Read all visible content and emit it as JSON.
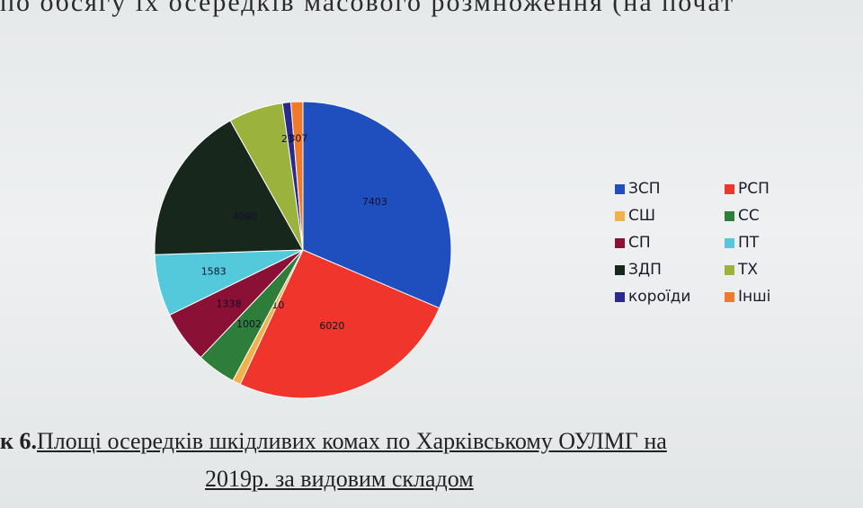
{
  "header": {
    "text": "по обсягу їх осередків масового розмноження (на почат"
  },
  "chart_data": {
    "type": "pie",
    "title": "",
    "categories": [
      "ЗСП",
      "РСП",
      "СШ",
      "СС",
      "СП",
      "ПТ",
      "ЗДП",
      "ТХ",
      "короїди",
      "Інші"
    ],
    "values": [
      7403,
      6020,
      210,
      1002,
      1338,
      1583,
      4090,
      1400,
      213,
      307
    ],
    "colors": [
      "#1f4fbf",
      "#f0362c",
      "#f2b24a",
      "#2e7d3a",
      "#8a1035",
      "#53c9db",
      "#17271b",
      "#9bb23c",
      "#2a2a8c",
      "#f07a2a"
    ],
    "data_labels": [
      "7403",
      "6020",
      "210",
      "1002",
      "1338",
      "1583",
      "4090",
      "",
      "213",
      "307"
    ],
    "legend_position": "right"
  },
  "caption": {
    "prefix": "к 6.",
    "line1": "Площі осередків шкідливих комах по Харківському ОУЛМГ на",
    "line2": "2019р. за видовим складом"
  }
}
